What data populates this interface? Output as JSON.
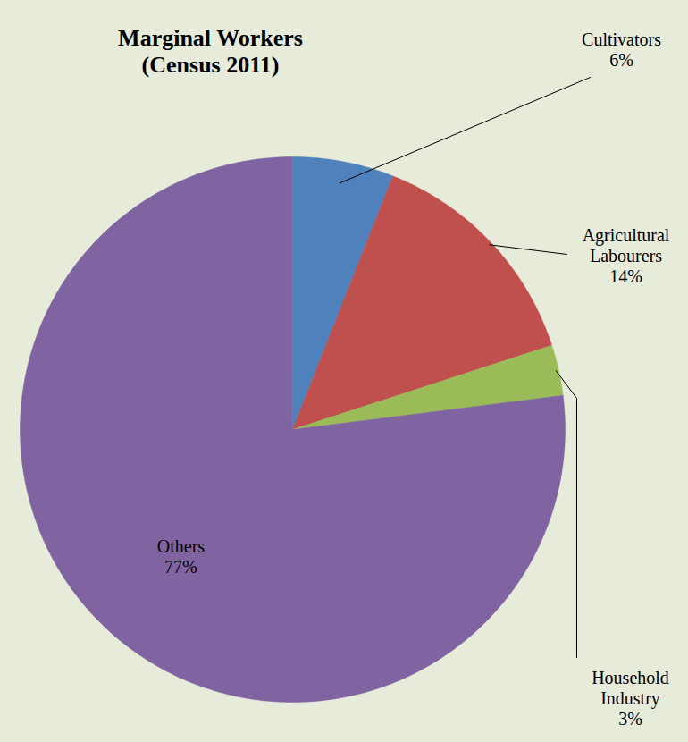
{
  "chart_data": {
    "type": "pie",
    "title": "Marginal Workers (Census 2011)",
    "categories": [
      "Cultivators",
      "Agricultural Labourers",
      "Household Industry",
      "Others"
    ],
    "values": [
      6,
      14,
      3,
      77
    ],
    "value_labels": [
      "6%",
      "14%",
      "3%",
      "77%"
    ],
    "colors": [
      "#4f81bd",
      "#c0504d",
      "#9bbb59",
      "#8064a2"
    ],
    "data_labels": true
  }
}
